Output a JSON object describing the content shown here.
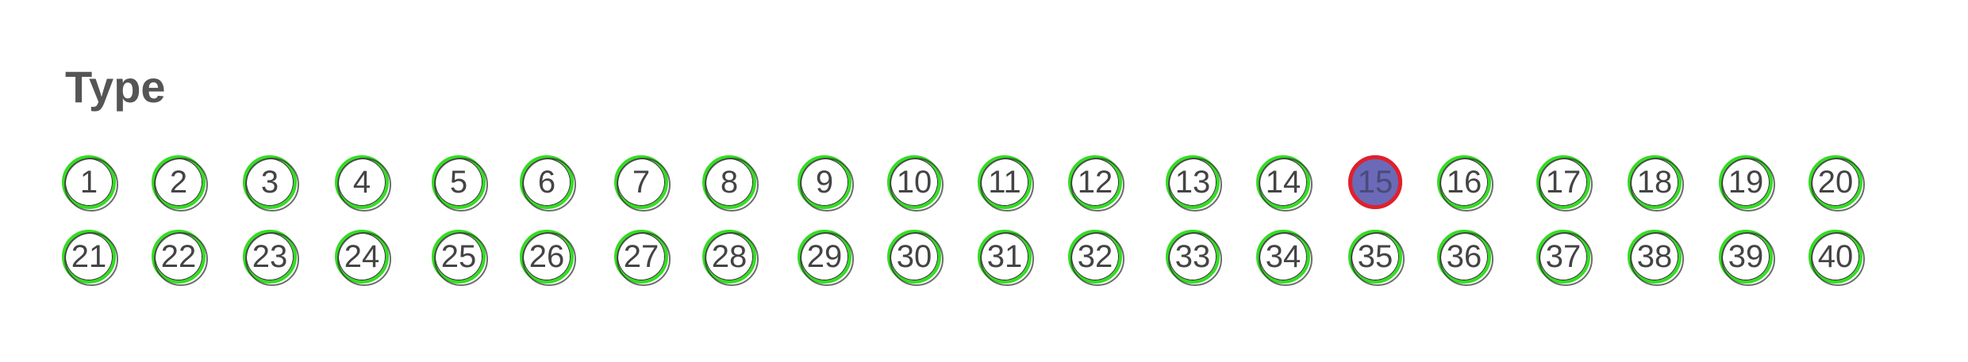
{
  "title": "Type",
  "colors": {
    "ring_green": "#33dd22",
    "ring_selected": "#e0202a",
    "fill_selected": "#6a6ab8",
    "text": "#444444"
  },
  "selected": 15,
  "rows": [
    [
      "1",
      "2",
      "3",
      "4",
      "5",
      "6",
      "7",
      "8",
      "9",
      "10",
      "11",
      "12",
      "13",
      "14",
      "15",
      "16",
      "17",
      "18",
      "19",
      "20"
    ],
    [
      "21",
      "22",
      "23",
      "24",
      "25",
      "26",
      "27",
      "28",
      "29",
      "30",
      "31",
      "32",
      "33",
      "34",
      "35",
      "36",
      "37",
      "38",
      "39",
      "40"
    ]
  ]
}
